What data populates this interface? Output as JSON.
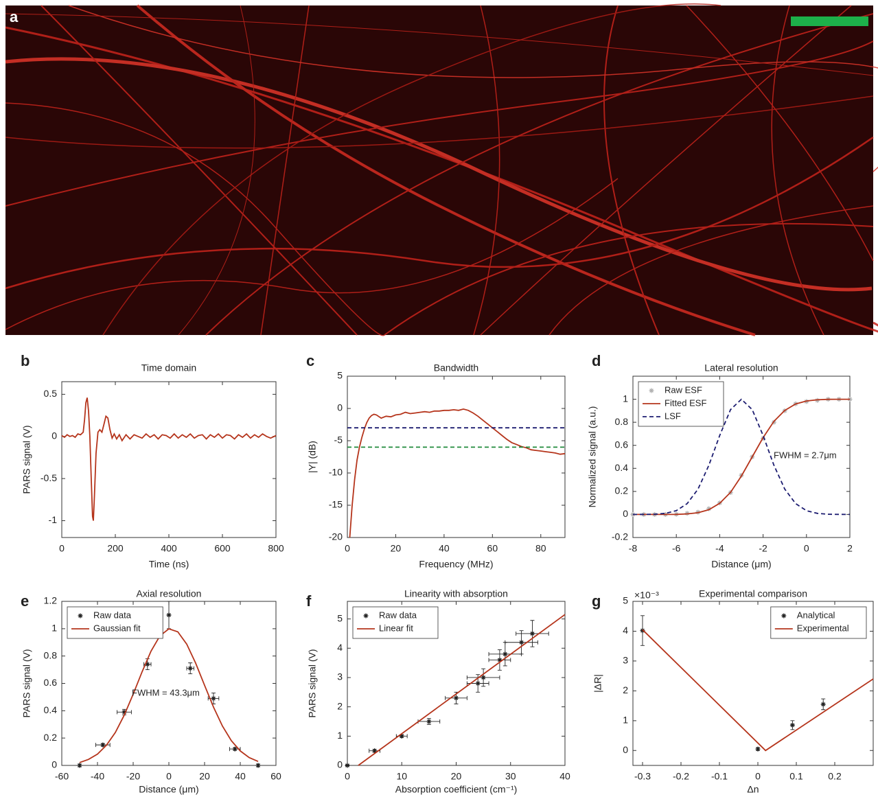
{
  "image_panel": {
    "label": "a"
  },
  "chart_data": [
    {
      "type": "line",
      "panel": "b",
      "title": "Time domain",
      "xlabel": "Time (ns)",
      "ylabel": "PARS signal (V)",
      "xlim": [
        0,
        800
      ],
      "ylim": [
        -1.2,
        0.65
      ],
      "xticks": [
        0,
        200,
        400,
        600,
        800
      ],
      "yticks": [
        -1,
        -0.5,
        0,
        0.5
      ],
      "series": [
        {
          "style": "line",
          "color": "#b5341b",
          "x": [
            0,
            10,
            20,
            30,
            40,
            50,
            60,
            70,
            80,
            85,
            90,
            95,
            100,
            105,
            110,
            115,
            118,
            122,
            128,
            135,
            142,
            150,
            158,
            165,
            172,
            180,
            188,
            196,
            205,
            215,
            225,
            240,
            255,
            270,
            285,
            300,
            315,
            330,
            345,
            360,
            375,
            390,
            405,
            420,
            435,
            450,
            465,
            480,
            495,
            510,
            525,
            540,
            555,
            570,
            585,
            600,
            615,
            630,
            645,
            660,
            675,
            690,
            705,
            720,
            735,
            750,
            765,
            780,
            800
          ],
          "values": [
            0.01,
            -0.01,
            0.02,
            0,
            0.01,
            -0.01,
            0.03,
            0.02,
            0.05,
            0.2,
            0.4,
            0.46,
            0.3,
            0.0,
            -0.5,
            -0.95,
            -1,
            -0.7,
            -0.2,
            0.05,
            0.08,
            0.05,
            0.15,
            0.24,
            0.22,
            0.08,
            -0.02,
            0.03,
            -0.03,
            0.02,
            -0.05,
            0.02,
            -0.03,
            0.02,
            0,
            -0.02,
            0.03,
            -0.01,
            0.02,
            -0.03,
            0.02,
            0.01,
            -0.02,
            0.03,
            -0.02,
            0.02,
            -0.01,
            0.03,
            -0.02,
            0.01,
            0.02,
            -0.03,
            0.02,
            -0.01,
            0.03,
            -0.02,
            0.02,
            0.01,
            -0.03,
            0.02,
            -0.01,
            0.03,
            -0.02,
            0.02,
            -0.01,
            0.03,
            0,
            -0.02,
            0.01
          ]
        }
      ]
    },
    {
      "type": "line",
      "panel": "c",
      "title": "Bandwidth",
      "xlabel": "Frequency (MHz)",
      "ylabel": "|Y| (dB)",
      "xlim": [
        0,
        90
      ],
      "ylim": [
        -20,
        5
      ],
      "xticks": [
        0,
        20,
        40,
        60,
        80
      ],
      "yticks": [
        -20,
        -15,
        -10,
        -5,
        0,
        5
      ],
      "series": [
        {
          "style": "line",
          "color": "#b5341b",
          "x": [
            1,
            2,
            3,
            4,
            5,
            6,
            7,
            8,
            9,
            10,
            11,
            12,
            14,
            16,
            18,
            20,
            22,
            24,
            26,
            28,
            30,
            32,
            34,
            36,
            38,
            40,
            42,
            44,
            46,
            48,
            50,
            52,
            54,
            56,
            58,
            60,
            62,
            64,
            66,
            68,
            70,
            72,
            74,
            76,
            78,
            80,
            82,
            84,
            86,
            88,
            90
          ],
          "values": [
            -20,
            -15,
            -11,
            -8,
            -6,
            -4.5,
            -3.2,
            -2.2,
            -1.5,
            -1.1,
            -0.9,
            -1.0,
            -1.5,
            -1.2,
            -1.3,
            -1.0,
            -0.9,
            -0.6,
            -0.8,
            -0.7,
            -0.6,
            -0.5,
            -0.6,
            -0.4,
            -0.4,
            -0.3,
            -0.3,
            -0.2,
            -0.3,
            -0.1,
            -0.3,
            -0.7,
            -1.2,
            -1.8,
            -2.4,
            -3.0,
            -3.6,
            -4.2,
            -4.8,
            -5.3,
            -5.6,
            -5.9,
            -6.1,
            -6.4,
            -6.5,
            -6.6,
            -6.7,
            -6.8,
            -6.9,
            -7.1,
            -7.0
          ]
        },
        {
          "style": "dashed",
          "color": "#1c1c70",
          "x": [
            0,
            90
          ],
          "values": [
            -3,
            -3
          ]
        },
        {
          "style": "dashed",
          "color": "#1f8a3a",
          "x": [
            0,
            90
          ],
          "values": [
            -6,
            -6
          ]
        }
      ]
    },
    {
      "type": "line",
      "panel": "d",
      "title": "Lateral resolution",
      "xlabel": "Distance (μm)",
      "ylabel": "Normalized signal (a.u.)",
      "xlim": [
        -8,
        2
      ],
      "ylim": [
        -0.2,
        1.2
      ],
      "xticks": [
        -8,
        -6,
        -4,
        -2,
        0,
        2
      ],
      "yticks": [
        -0.2,
        0,
        0.2,
        0.4,
        0.6,
        0.8,
        1
      ],
      "legend": "upper left",
      "annotation": "FWHM = 2.7μm",
      "series": [
        {
          "name": "Raw ESF",
          "style": "markers",
          "color": "#b0b0b0",
          "x": [
            -8,
            -7.5,
            -7,
            -6.5,
            -6,
            -5.5,
            -5,
            -4.5,
            -4,
            -3.5,
            -3,
            -2.5,
            -2,
            -1.5,
            -1,
            -0.5,
            0,
            0.5,
            1,
            1.5,
            2
          ],
          "values": [
            0,
            0,
            0,
            0,
            0.002,
            0.01,
            0.02,
            0.05,
            0.1,
            0.19,
            0.34,
            0.5,
            0.66,
            0.8,
            0.9,
            0.96,
            0.98,
            0.99,
            1,
            1,
            1
          ]
        },
        {
          "name": "Fitted ESF",
          "style": "line",
          "color": "#b5341b",
          "x": [
            -8,
            -7.5,
            -7,
            -6.5,
            -6,
            -5.5,
            -5,
            -4.5,
            -4,
            -3.5,
            -3,
            -2.5,
            -2,
            -1.5,
            -1,
            -0.5,
            0,
            0.5,
            1,
            1.5,
            2
          ],
          "values": [
            0,
            0,
            0,
            0,
            0.001,
            0.005,
            0.015,
            0.041,
            0.097,
            0.192,
            0.333,
            0.5,
            0.667,
            0.808,
            0.903,
            0.959,
            0.985,
            0.995,
            0.999,
            1,
            1
          ]
        },
        {
          "name": "LSF",
          "style": "dashed",
          "color": "#1c1c70",
          "x": [
            -8,
            -7.5,
            -7,
            -6.5,
            -6,
            -5.5,
            -5,
            -4.5,
            -4,
            -3.5,
            -3,
            -2.5,
            -2,
            -1.5,
            -1,
            -0.5,
            0,
            0.5,
            1,
            1.5,
            2
          ],
          "values": [
            0,
            0.0005,
            0.002,
            0.01,
            0.033,
            0.094,
            0.22,
            0.427,
            0.685,
            0.91,
            1,
            0.91,
            0.685,
            0.427,
            0.22,
            0.094,
            0.033,
            0.01,
            0.002,
            0.0005,
            0
          ]
        }
      ]
    },
    {
      "type": "line",
      "panel": "e",
      "title": "Axial resolution",
      "xlabel": "Distance (μm)",
      "ylabel": "PARS signal (V)",
      "xlim": [
        -60,
        60
      ],
      "ylim": [
        0,
        1.2
      ],
      "xticks": [
        -60,
        -40,
        -20,
        0,
        20,
        40,
        60
      ],
      "yticks": [
        0,
        0.2,
        0.4,
        0.6,
        0.8,
        1,
        1.2
      ],
      "legend": "upper left",
      "annotation": "FWHM = 43.3μm",
      "series": [
        {
          "name": "Raw data",
          "style": "errorbar",
          "color": "#222222",
          "x": [
            -50,
            -37,
            -25,
            -12,
            0,
            12,
            25,
            37,
            50
          ],
          "values": [
            0,
            0.15,
            0.39,
            0.74,
            1.1,
            0.71,
            0.49,
            0.12,
            0
          ],
          "xerr": [
            0,
            4,
            4,
            2,
            0,
            2,
            3,
            3,
            0
          ],
          "yerr": [
            0.01,
            0.01,
            0.02,
            0.04,
            0.1,
            0.04,
            0.04,
            0.01,
            0.01
          ]
        },
        {
          "name": "Gaussian fit",
          "style": "line",
          "color": "#b5341b",
          "x": [
            -50,
            -45,
            -40,
            -35,
            -30,
            -25,
            -20,
            -15,
            -10,
            -5,
            0,
            5,
            10,
            15,
            20,
            25,
            30,
            35,
            40,
            45,
            50
          ],
          "values": [
            0.021,
            0.044,
            0.083,
            0.147,
            0.241,
            0.368,
            0.521,
            0.685,
            0.836,
            0.948,
            0.999,
            0.977,
            0.887,
            0.748,
            0.586,
            0.427,
            0.288,
            0.181,
            0.106,
            0.057,
            0.029
          ]
        }
      ]
    },
    {
      "type": "line",
      "panel": "f",
      "title": "Linearity with absorption",
      "xlabel": "Absorption coefficient (cm⁻¹)",
      "ylabel": "PARS signal (V)",
      "xlim": [
        0,
        40
      ],
      "ylim": [
        0,
        5.6
      ],
      "xticks": [
        0,
        10,
        20,
        30,
        40
      ],
      "yticks": [
        0,
        1,
        2,
        3,
        4,
        5
      ],
      "legend": "upper left",
      "series": [
        {
          "name": "Raw data",
          "style": "errorbar",
          "color": "#222222",
          "x": [
            0,
            5,
            10,
            15,
            20,
            24,
            25,
            28,
            29,
            32,
            34
          ],
          "values": [
            0,
            0.5,
            1,
            1.5,
            2.3,
            2.8,
            3,
            3.6,
            3.8,
            4.2,
            4.5
          ],
          "xerr": [
            0,
            1,
            1,
            2,
            2,
            2,
            3,
            2,
            3,
            3,
            3
          ],
          "yerr": [
            0.02,
            0.05,
            0.05,
            0.1,
            0.2,
            0.3,
            0.3,
            0.35,
            0.4,
            0.4,
            0.45
          ]
        },
        {
          "name": "Linear fit",
          "style": "line",
          "color": "#b5341b",
          "x": [
            2,
            40
          ],
          "values": [
            0,
            5.15
          ]
        }
      ]
    },
    {
      "type": "line",
      "panel": "g",
      "title": "Experimental comparison",
      "xlabel": "Δn",
      "ylabel": "|ΔR|",
      "y_exponent_label": "×10⁻³",
      "xlim": [
        -0.325,
        0.3
      ],
      "ylim": [
        -0.5,
        5
      ],
      "xticks": [
        -0.3,
        -0.2,
        -0.1,
        0,
        0.1,
        0.2
      ],
      "yticks": [
        0,
        1,
        2,
        3,
        4,
        5
      ],
      "legend": "upper right",
      "series": [
        {
          "name": "Analytical",
          "style": "errorbar",
          "color": "#222222",
          "x": [
            -0.3,
            0,
            0.09,
            0.17
          ],
          "values": [
            4.02,
            0.05,
            0.85,
            1.55
          ],
          "yerr": [
            0.5,
            0.05,
            0.15,
            0.18
          ]
        },
        {
          "name": "Experimental",
          "style": "line",
          "color": "#b5341b",
          "x": [
            -0.3,
            0.02,
            0.3
          ],
          "values": [
            4.05,
            0,
            2.4
          ]
        }
      ]
    }
  ]
}
